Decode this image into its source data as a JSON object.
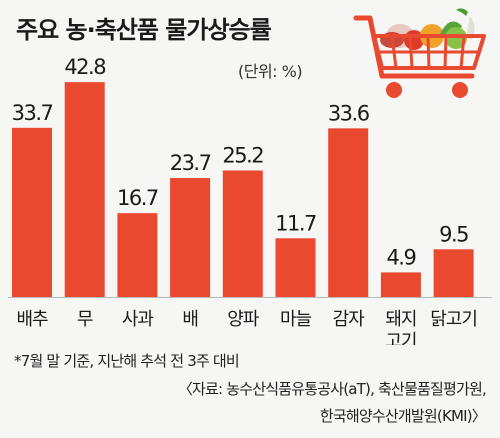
{
  "chart_data": {
    "type": "bar",
    "title": "주요 농·축산품 물가상승률",
    "unit_label": "(단위: %)",
    "categories": [
      "배추",
      "무",
      "사과",
      "배",
      "양파",
      "마늘",
      "감자",
      "돼지고기",
      "닭고기"
    ],
    "category_lines": [
      [
        "배추"
      ],
      [
        "무"
      ],
      [
        "사과"
      ],
      [
        "배"
      ],
      [
        "양파"
      ],
      [
        "마늘"
      ],
      [
        "감자"
      ],
      [
        "돼지",
        "고기"
      ],
      [
        "닭고기"
      ]
    ],
    "values": [
      33.7,
      42.8,
      16.7,
      23.7,
      25.2,
      11.7,
      33.6,
      4.9,
      9.5
    ],
    "value_labels": [
      "33.7",
      "42.8",
      "16.7",
      "23.7",
      "25.2",
      "11.7",
      "33.6",
      "4.9",
      "9.5"
    ],
    "bar_color": "#e8492f",
    "grid": false
  },
  "footnote": "*7월 말 기준, 지난해 추석 전 3주 대비",
  "source_line1": "〈자료: 농수산식품유통공사(aT), 축산물품질평가원,",
  "source_line2": "한국해양수산개발원(KMI)〉",
  "illustration": "shopping-cart-with-groceries-icon"
}
